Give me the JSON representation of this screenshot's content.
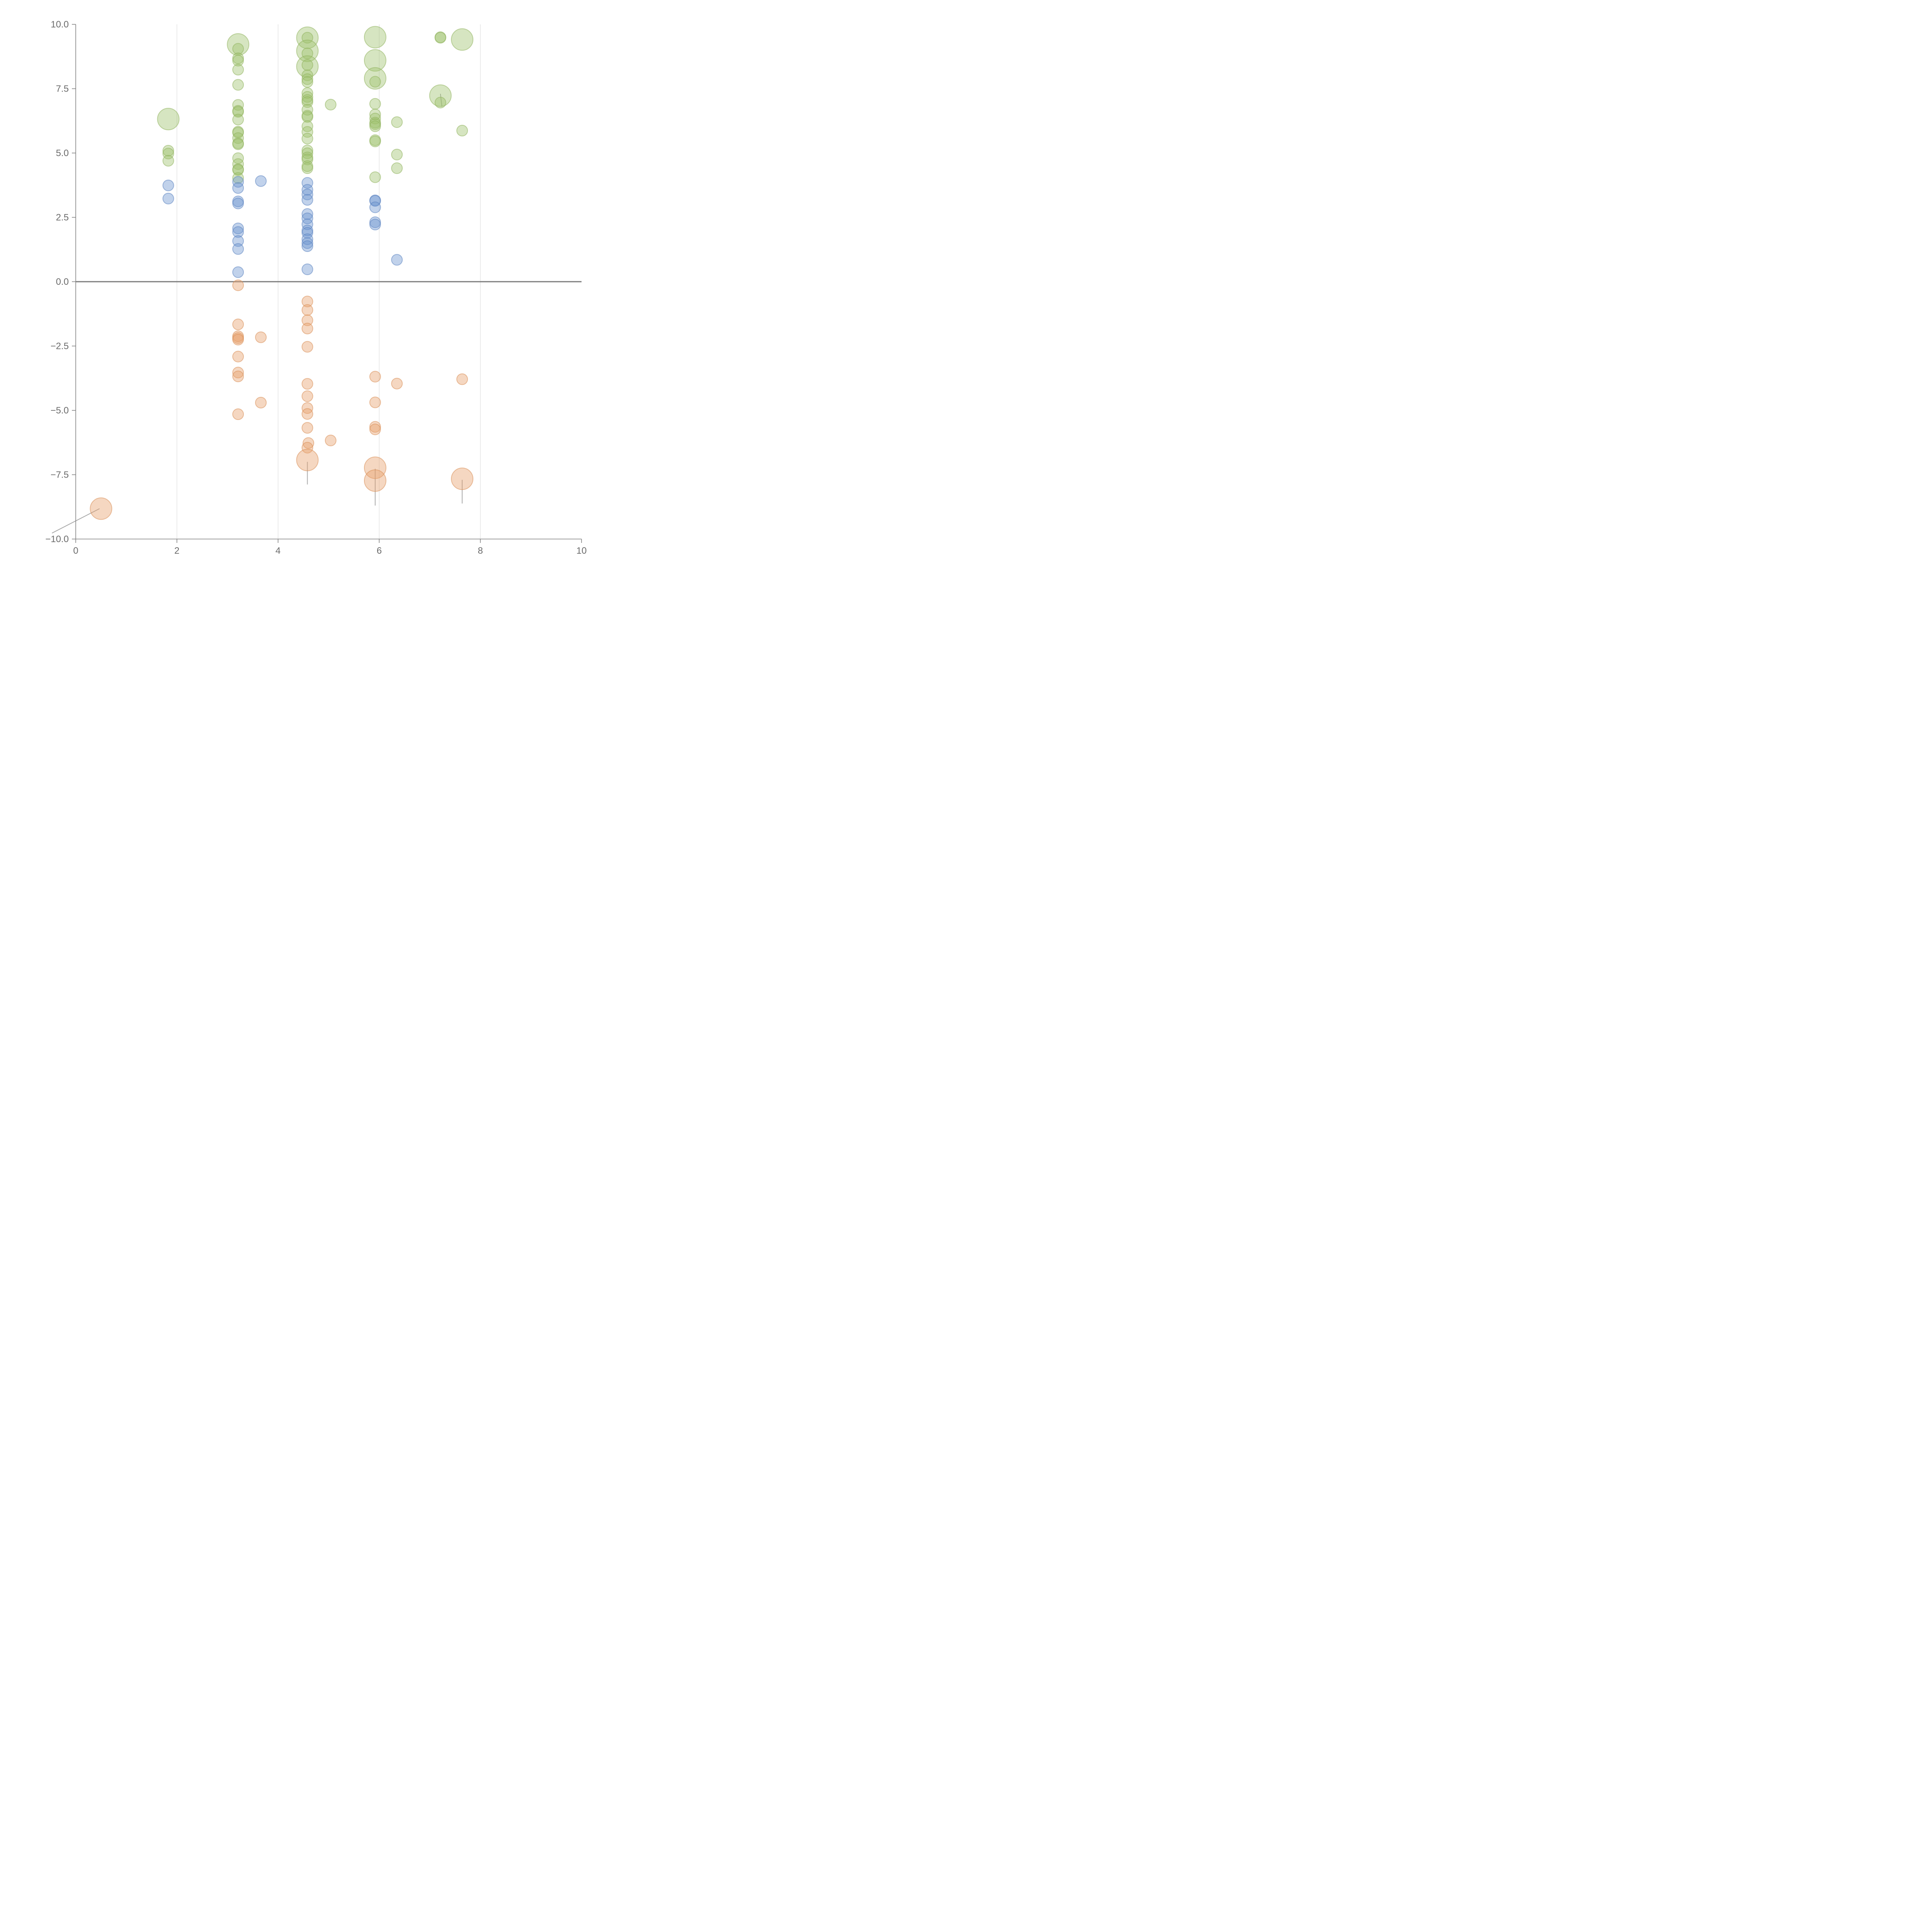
{
  "chart_data": {
    "type": "scatter",
    "title": "",
    "xlabel": "",
    "ylabel": "",
    "xlim": [
      0,
      10
    ],
    "ylim": [
      -10,
      10
    ],
    "xticks": [
      "0",
      "2",
      "4",
      "6",
      "8",
      "10"
    ],
    "yticks": [
      "−10.0",
      "−7.5",
      "−5.0",
      "−2.5",
      "0.0",
      "2.5",
      "5.0",
      "7.5",
      "10.0"
    ],
    "grid": "vertical",
    "legend": "none",
    "colors": {
      "green": "#9dc16b",
      "blue": "#6b93cf",
      "orange": "#e8a06c",
      "green_stroke": "#8fb35c",
      "blue_stroke": "#5a82c0",
      "orange_stroke": "#d98e56"
    },
    "series": [
      {
        "color": "green",
        "points": [
          {
            "x": 1.83,
            "y": 6.32,
            "size": 2
          },
          {
            "x": 1.83,
            "y": 5.09
          },
          {
            "x": 1.83,
            "y": 4.98
          },
          {
            "x": 1.83,
            "y": 4.7
          },
          {
            "x": 3.21,
            "y": 9.22,
            "size": 2
          },
          {
            "x": 3.21,
            "y": 9.05
          },
          {
            "x": 3.21,
            "y": 8.68
          },
          {
            "x": 3.21,
            "y": 8.59
          },
          {
            "x": 3.21,
            "y": 8.24
          },
          {
            "x": 3.21,
            "y": 7.65
          },
          {
            "x": 3.21,
            "y": 6.87
          },
          {
            "x": 3.21,
            "y": 6.64
          },
          {
            "x": 3.21,
            "y": 6.6
          },
          {
            "x": 3.21,
            "y": 6.3
          },
          {
            "x": 3.21,
            "y": 5.83
          },
          {
            "x": 3.21,
            "y": 5.79
          },
          {
            "x": 3.21,
            "y": 5.58
          },
          {
            "x": 3.21,
            "y": 5.38
          },
          {
            "x": 3.21,
            "y": 5.34
          },
          {
            "x": 3.21,
            "y": 4.8
          },
          {
            "x": 3.21,
            "y": 4.57
          },
          {
            "x": 3.21,
            "y": 4.37
          },
          {
            "x": 3.21,
            "y": 4.34
          },
          {
            "x": 3.21,
            "y": 4.03
          },
          {
            "x": 4.58,
            "y": 9.48,
            "size": 2
          },
          {
            "x": 4.58,
            "y": 9.48
          },
          {
            "x": 4.58,
            "y": 8.97,
            "size": 2
          },
          {
            "x": 4.58,
            "y": 8.87
          },
          {
            "x": 4.58,
            "y": 8.36,
            "size": 2
          },
          {
            "x": 4.58,
            "y": 8.42
          },
          {
            "x": 4.58,
            "y": 8.02
          },
          {
            "x": 4.58,
            "y": 7.87
          },
          {
            "x": 4.58,
            "y": 7.76
          },
          {
            "x": 4.58,
            "y": 7.33
          },
          {
            "x": 4.58,
            "y": 7.18
          },
          {
            "x": 4.58,
            "y": 7.06
          },
          {
            "x": 4.58,
            "y": 6.98
          },
          {
            "x": 4.58,
            "y": 6.68
          },
          {
            "x": 4.58,
            "y": 6.45
          },
          {
            "x": 4.58,
            "y": 6.4
          },
          {
            "x": 4.58,
            "y": 6.04
          },
          {
            "x": 4.58,
            "y": 5.82
          },
          {
            "x": 4.58,
            "y": 5.56
          },
          {
            "x": 4.58,
            "y": 5.1
          },
          {
            "x": 4.58,
            "y": 4.99
          },
          {
            "x": 4.58,
            "y": 4.83
          },
          {
            "x": 4.58,
            "y": 4.75
          },
          {
            "x": 4.58,
            "y": 4.49
          },
          {
            "x": 4.58,
            "y": 4.41
          },
          {
            "x": 5.04,
            "y": 6.88
          },
          {
            "x": 5.92,
            "y": 9.5,
            "size": 2
          },
          {
            "x": 5.92,
            "y": 8.6,
            "size": 2
          },
          {
            "x": 5.92,
            "y": 7.9,
            "size": 2
          },
          {
            "x": 5.92,
            "y": 7.77
          },
          {
            "x": 5.92,
            "y": 6.91
          },
          {
            "x": 5.92,
            "y": 6.5
          },
          {
            "x": 5.92,
            "y": 6.34
          },
          {
            "x": 5.92,
            "y": 6.18
          },
          {
            "x": 5.92,
            "y": 6.12
          },
          {
            "x": 5.92,
            "y": 6.04
          },
          {
            "x": 5.92,
            "y": 5.5
          },
          {
            "x": 5.92,
            "y": 5.45
          },
          {
            "x": 5.92,
            "y": 4.06
          },
          {
            "x": 6.35,
            "y": 6.2
          },
          {
            "x": 6.35,
            "y": 4.94
          },
          {
            "x": 6.35,
            "y": 4.41
          },
          {
            "x": 7.21,
            "y": 7.23,
            "size": 2
          },
          {
            "x": 7.21,
            "y": 6.96
          },
          {
            "x": 7.21,
            "y": 9.5
          },
          {
            "x": 7.21,
            "y": 9.48
          },
          {
            "x": 7.64,
            "y": 9.41,
            "size": 2
          },
          {
            "x": 7.64,
            "y": 5.87
          }
        ]
      },
      {
        "color": "blue",
        "points": [
          {
            "x": 1.83,
            "y": 3.74
          },
          {
            "x": 1.83,
            "y": 3.23
          },
          {
            "x": 3.21,
            "y": 3.88
          },
          {
            "x": 3.21,
            "y": 3.64
          },
          {
            "x": 3.21,
            "y": 3.12
          },
          {
            "x": 3.21,
            "y": 3.04
          },
          {
            "x": 3.21,
            "y": 2.07
          },
          {
            "x": 3.21,
            "y": 1.93
          },
          {
            "x": 3.21,
            "y": 1.58
          },
          {
            "x": 3.21,
            "y": 1.27
          },
          {
            "x": 3.21,
            "y": 0.37
          },
          {
            "x": 3.66,
            "y": 3.91
          },
          {
            "x": 4.58,
            "y": 3.84
          },
          {
            "x": 4.58,
            "y": 3.57
          },
          {
            "x": 4.58,
            "y": 3.39
          },
          {
            "x": 4.58,
            "y": 3.18
          },
          {
            "x": 4.58,
            "y": 2.63
          },
          {
            "x": 4.58,
            "y": 2.46
          },
          {
            "x": 4.58,
            "y": 2.23
          },
          {
            "x": 4.58,
            "y": 1.99
          },
          {
            "x": 4.58,
            "y": 1.9
          },
          {
            "x": 4.58,
            "y": 1.65
          },
          {
            "x": 4.58,
            "y": 1.5
          },
          {
            "x": 4.58,
            "y": 1.38
          },
          {
            "x": 4.58,
            "y": 0.48
          },
          {
            "x": 5.92,
            "y": 3.16
          },
          {
            "x": 5.92,
            "y": 3.14
          },
          {
            "x": 5.92,
            "y": 2.89
          },
          {
            "x": 5.92,
            "y": 2.31
          },
          {
            "x": 5.92,
            "y": 2.22
          },
          {
            "x": 6.35,
            "y": 0.85
          }
        ]
      },
      {
        "color": "orange",
        "points": [
          {
            "x": 0.5,
            "y": -8.82,
            "size": 2
          },
          {
            "x": 3.21,
            "y": -0.14
          },
          {
            "x": 3.21,
            "y": -1.66
          },
          {
            "x": 3.21,
            "y": -2.12
          },
          {
            "x": 3.21,
            "y": -2.19
          },
          {
            "x": 3.21,
            "y": -2.25
          },
          {
            "x": 3.21,
            "y": -2.91
          },
          {
            "x": 3.21,
            "y": -3.53
          },
          {
            "x": 3.21,
            "y": -3.68
          },
          {
            "x": 3.21,
            "y": -5.15
          },
          {
            "x": 3.66,
            "y": -2.16
          },
          {
            "x": 3.66,
            "y": -4.7
          },
          {
            "x": 4.58,
            "y": -0.77
          },
          {
            "x": 4.58,
            "y": -1.1
          },
          {
            "x": 4.58,
            "y": -1.5
          },
          {
            "x": 4.58,
            "y": -1.82
          },
          {
            "x": 4.58,
            "y": -2.53
          },
          {
            "x": 4.58,
            "y": -3.97
          },
          {
            "x": 4.58,
            "y": -4.45
          },
          {
            "x": 4.58,
            "y": -4.91
          },
          {
            "x": 4.58,
            "y": -5.14
          },
          {
            "x": 4.58,
            "y": -5.68
          },
          {
            "x": 4.6,
            "y": -6.27
          },
          {
            "x": 4.58,
            "y": -6.45
          },
          {
            "x": 4.58,
            "y": -6.93,
            "size": 2
          },
          {
            "x": 5.04,
            "y": -6.17
          },
          {
            "x": 5.92,
            "y": -3.69
          },
          {
            "x": 5.92,
            "y": -4.69
          },
          {
            "x": 5.92,
            "y": -5.64
          },
          {
            "x": 5.92,
            "y": -5.74
          },
          {
            "x": 5.92,
            "y": -7.23,
            "size": 2
          },
          {
            "x": 5.92,
            "y": -7.73,
            "size": 2
          },
          {
            "x": 6.35,
            "y": -3.96
          },
          {
            "x": 7.64,
            "y": -3.79
          },
          {
            "x": 7.64,
            "y": -7.66,
            "size": 2
          }
        ]
      }
    ]
  }
}
